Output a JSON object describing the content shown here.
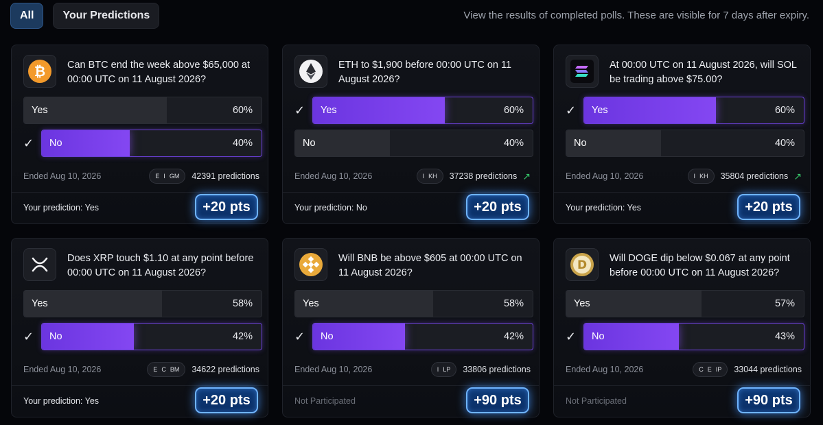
{
  "tabs": [
    {
      "label": "All",
      "active": true
    },
    {
      "label": "Your Predictions",
      "active": false
    }
  ],
  "hint": "View the results of completed polls. These are visible for 7 days after expiry.",
  "cards": [
    {
      "coin": "btc-icon",
      "question": "Can BTC end the week above $65,000 at 00:00 UTC on 11 August 2026?",
      "options": [
        {
          "label": "Yes",
          "pct": "60%",
          "value": 0.6,
          "winner": false
        },
        {
          "label": "No",
          "pct": "40%",
          "value": 0.4,
          "winner": true
        }
      ],
      "ended": "Ended Aug 10, 2026",
      "avatars": [
        "E",
        "I",
        "GM"
      ],
      "predictions": "42391 predictions",
      "trending": false,
      "your_prediction": "Your prediction: Yes",
      "participated": true,
      "points": "+20 pts"
    },
    {
      "coin": "eth-icon",
      "question": "ETH to $1,900 before 00:00 UTC on 11 August 2026?",
      "options": [
        {
          "label": "Yes",
          "pct": "60%",
          "value": 0.6,
          "winner": true
        },
        {
          "label": "No",
          "pct": "40%",
          "value": 0.4,
          "winner": false
        }
      ],
      "ended": "Ended Aug 10, 2026",
      "avatars": [
        "I",
        "KH"
      ],
      "predictions": "37238 predictions",
      "trending": true,
      "your_prediction": "Your prediction: No",
      "participated": true,
      "points": "+20 pts"
    },
    {
      "coin": "sol-icon",
      "question": "At 00:00 UTC on 11 August 2026, will SOL be trading above $75.00?",
      "options": [
        {
          "label": "Yes",
          "pct": "60%",
          "value": 0.6,
          "winner": true
        },
        {
          "label": "No",
          "pct": "40%",
          "value": 0.4,
          "winner": false
        }
      ],
      "ended": "Ended Aug 10, 2026",
      "avatars": [
        "I",
        "KH"
      ],
      "predictions": "35804 predictions",
      "trending": true,
      "your_prediction": "Your prediction: Yes",
      "participated": true,
      "points": "+20 pts"
    },
    {
      "coin": "xrp-icon",
      "question": "Does XRP touch $1.10 at any point before 00:00 UTC on 11 August 2026?",
      "options": [
        {
          "label": "Yes",
          "pct": "58%",
          "value": 0.58,
          "winner": false
        },
        {
          "label": "No",
          "pct": "42%",
          "value": 0.42,
          "winner": true
        }
      ],
      "ended": "Ended Aug 10, 2026",
      "avatars": [
        "E",
        "C",
        "BM"
      ],
      "predictions": "34622 predictions",
      "trending": false,
      "your_prediction": "Your prediction: Yes",
      "participated": true,
      "points": "+20 pts"
    },
    {
      "coin": "bnb-icon",
      "question": "Will BNB be above $605 at 00:00 UTC on 11 August 2026?",
      "options": [
        {
          "label": "Yes",
          "pct": "58%",
          "value": 0.58,
          "winner": false
        },
        {
          "label": "No",
          "pct": "42%",
          "value": 0.42,
          "winner": true
        }
      ],
      "ended": "Ended Aug 10, 2026",
      "avatars": [
        "I",
        "LP"
      ],
      "predictions": "33806 predictions",
      "trending": false,
      "your_prediction": "Not Participated",
      "participated": false,
      "points": "+90 pts"
    },
    {
      "coin": "doge-icon",
      "question": "Will DOGE dip below $0.067 at any point before 00:00 UTC on 11 August 2026?",
      "options": [
        {
          "label": "Yes",
          "pct": "57%",
          "value": 0.57,
          "winner": false
        },
        {
          "label": "No",
          "pct": "43%",
          "value": 0.43,
          "winner": true
        }
      ],
      "ended": "Ended Aug 10, 2026",
      "avatars": [
        "C",
        "E",
        "IP"
      ],
      "predictions": "33044 predictions",
      "trending": false,
      "your_prediction": "Not Participated",
      "participated": false,
      "points": "+90 pts"
    }
  ]
}
